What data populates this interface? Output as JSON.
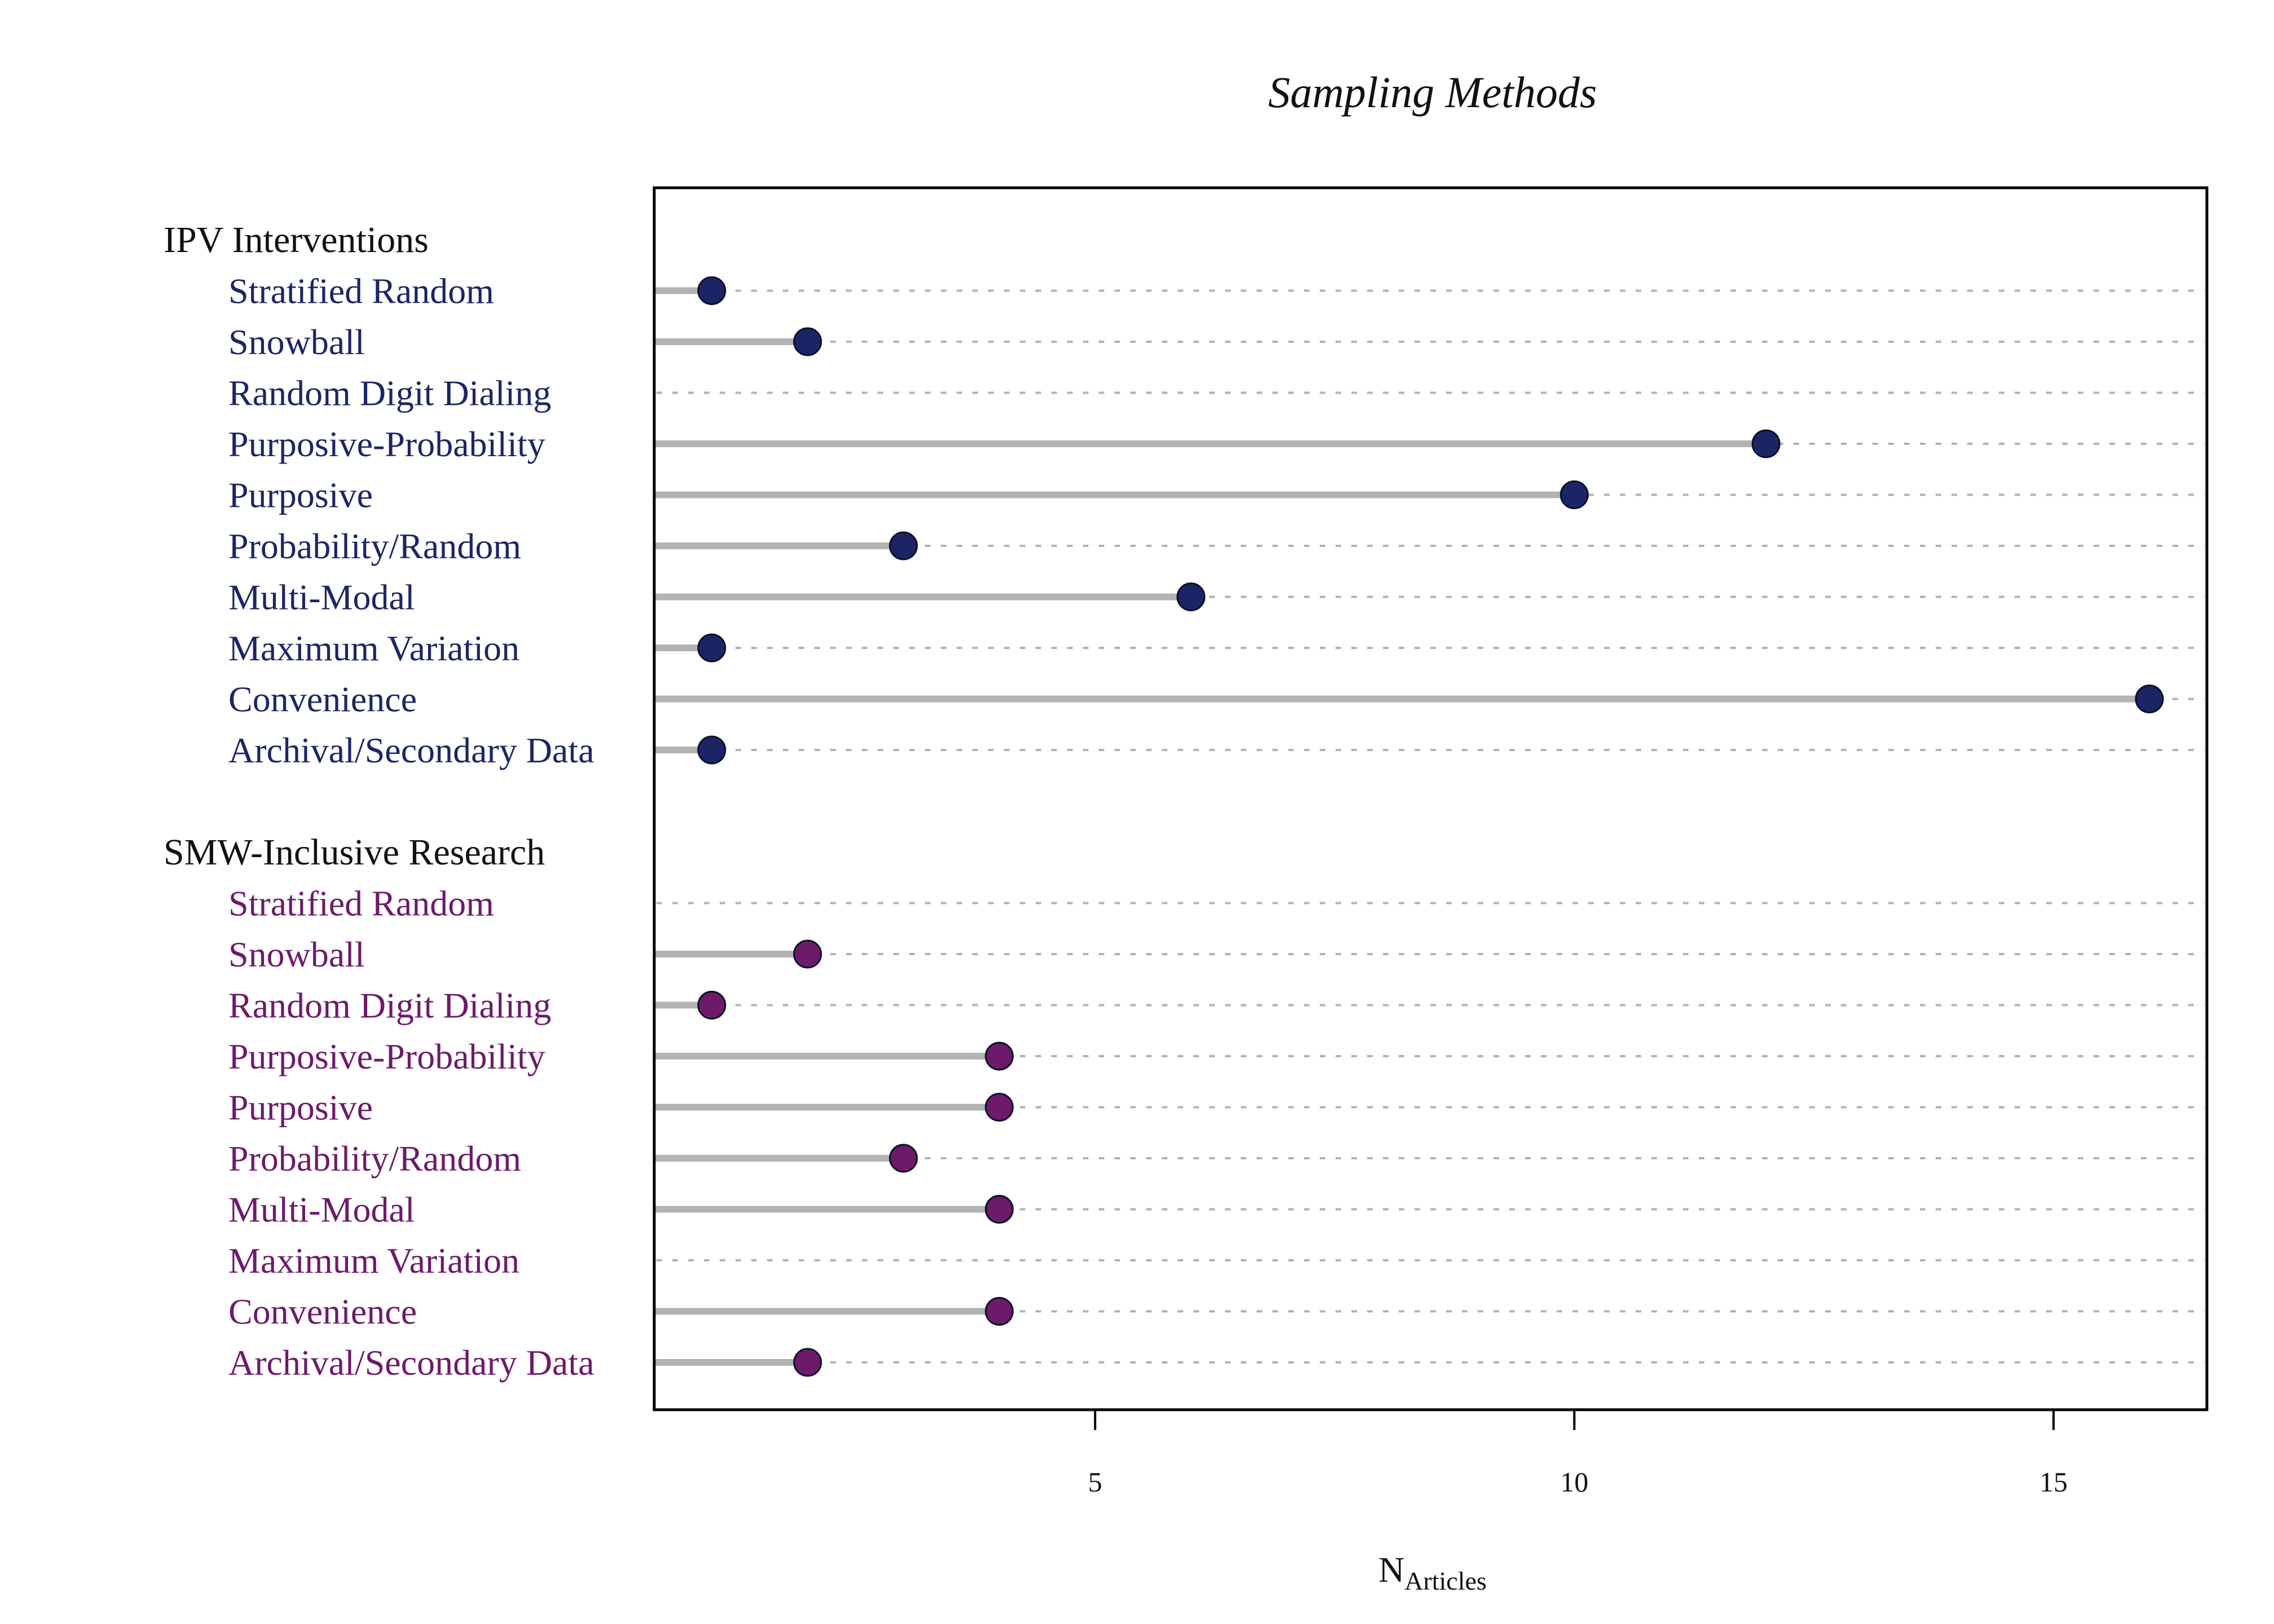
{
  "chart_data": {
    "type": "lollipop",
    "title": "Sampling Methods",
    "xlabel": "N",
    "xlabel_subscript": "Articles",
    "xlim": [
      0.4,
      16.6
    ],
    "xticks": [
      5,
      10,
      15
    ],
    "xtick_labels": [
      "5",
      "10",
      "15"
    ],
    "grid": "dotted horizontal guide per row",
    "groups": [
      {
        "name": "IPV Interventions",
        "color": "#1b2566",
        "items": [
          {
            "label": "Stratified Random",
            "value": 1
          },
          {
            "label": "Snowball",
            "value": 2
          },
          {
            "label": "Random Digit Dialing",
            "value": 0
          },
          {
            "label": "Purposive-Probability",
            "value": 12
          },
          {
            "label": "Purposive",
            "value": 10
          },
          {
            "label": "Probability/Random",
            "value": 3
          },
          {
            "label": "Multi-Modal",
            "value": 6
          },
          {
            "label": "Maximum Variation",
            "value": 1
          },
          {
            "label": "Convenience",
            "value": 16
          },
          {
            "label": "Archival/Secondary Data",
            "value": 1
          }
        ]
      },
      {
        "name": "SMW-Inclusive Research",
        "color": "#6d1a6b",
        "items": [
          {
            "label": "Stratified Random",
            "value": 0
          },
          {
            "label": "Snowball",
            "value": 2
          },
          {
            "label": "Random Digit Dialing",
            "value": 1
          },
          {
            "label": "Purposive-Probability",
            "value": 4
          },
          {
            "label": "Purposive",
            "value": 4
          },
          {
            "label": "Probability/Random",
            "value": 3
          },
          {
            "label": "Multi-Modal",
            "value": 4
          },
          {
            "label": "Maximum Variation",
            "value": 0
          },
          {
            "label": "Convenience",
            "value": 4
          },
          {
            "label": "Archival/Secondary Data",
            "value": 2
          }
        ]
      }
    ]
  },
  "colors": {
    "stem": "#b3b3b3",
    "guide": "#b3b3b3",
    "frame": "#000000",
    "text": "#111111"
  }
}
